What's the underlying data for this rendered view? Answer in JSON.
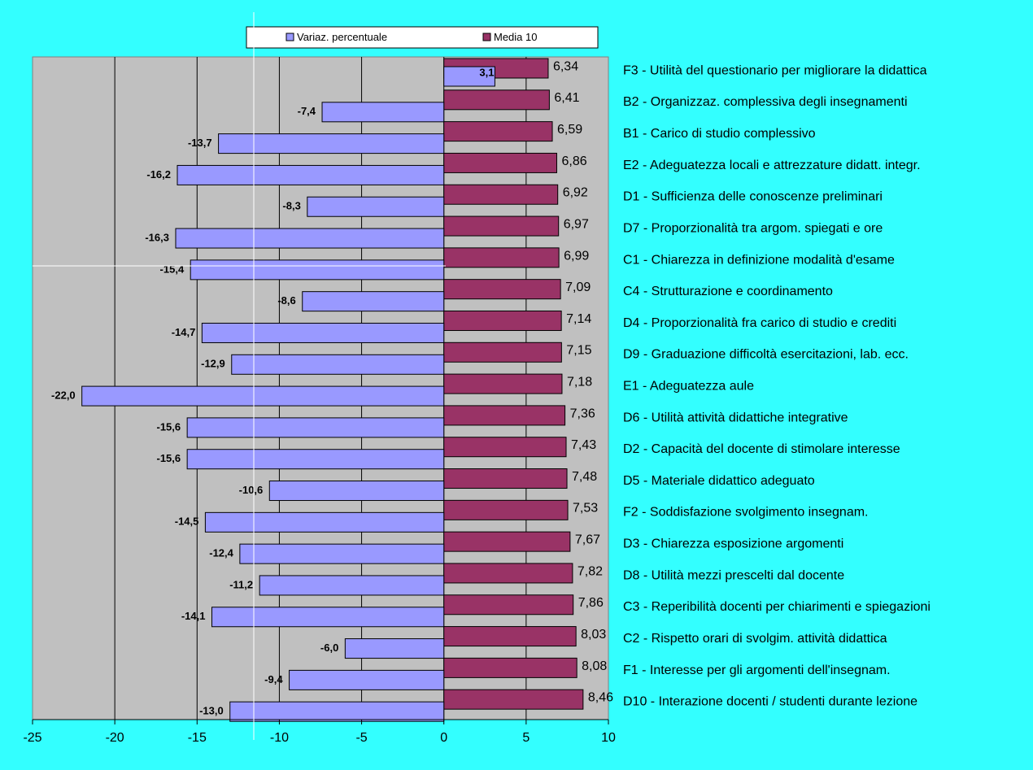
{
  "chart_data": {
    "type": "bar",
    "orientation": "horizontal",
    "categories": [
      "F3 - Utilità del questionario per migliorare la didattica",
      "B2 - Organizzaz. complessiva degli insegnamenti",
      "B1 - Carico di studio complessivo",
      "E2 - Adeguatezza locali e attrezzature didatt. integr.",
      "D1 - Sufficienza delle conoscenze preliminari",
      "D7 - Proporzionalità tra argom. spiegati e ore",
      "C1 - Chiarezza in definizione modalità d'esame",
      "C4 - Strutturazione e coordinamento",
      "D4 - Proporzionalità fra carico di studio e crediti",
      "D9 - Graduazione difficoltà esercitazioni, lab. ecc.",
      "E1 - Adeguatezza aule",
      "D6 - Utilità attività didattiche integrative",
      "D2 - Capacità del docente di stimolare interesse",
      "D5 - Materiale didattico adeguato",
      "F2 - Soddisfazione svolgimento insegnam.",
      "D3 - Chiarezza esposizione argomenti",
      "D8 - Utilità mezzi prescelti dal docente",
      "C3 - Reperibilità docenti per chiarimenti e spiegazioni",
      "C2 - Rispetto orari di svolgim. attività didattica",
      "F1 - Interesse per gli argomenti dell'insegnam.",
      "D10 - Interazione docenti / studenti durante lezione"
    ],
    "series": [
      {
        "name": "Variaz. percentuale",
        "color": "#9999ff",
        "values": [
          3.1,
          -7.4,
          -13.7,
          -16.2,
          -8.3,
          -16.3,
          -15.4,
          -8.6,
          -14.7,
          -12.9,
          -22.0,
          -15.6,
          -15.6,
          -10.6,
          -14.5,
          -12.4,
          -11.2,
          -14.1,
          -6.0,
          -9.4,
          -13.0
        ],
        "labels": [
          "3,1",
          "-7,4",
          "-13,7",
          "-16,2",
          "-8,3",
          "-16,3",
          "-15,4",
          "-8,6",
          "-14,7",
          "-12,9",
          "-22,0",
          "-15,6",
          "-15,6",
          "-10,6",
          "-14,5",
          "-12,4",
          "-11,2",
          "-14,1",
          "-6,0",
          "-9,4",
          "-13,0"
        ]
      },
      {
        "name": "Media 10",
        "color": "#993366",
        "values": [
          6.34,
          6.41,
          6.59,
          6.86,
          6.92,
          6.97,
          6.99,
          7.09,
          7.14,
          7.15,
          7.18,
          7.36,
          7.43,
          7.48,
          7.53,
          7.67,
          7.82,
          7.86,
          8.03,
          8.08,
          8.46
        ],
        "labels": [
          "6,34",
          "6,41",
          "6,59",
          "6,86",
          "6,92",
          "6,97",
          "6,99",
          "7,09",
          "7,14",
          "7,15",
          "7,18",
          "7,36",
          "7,43",
          "7,48",
          "7,53",
          "7,67",
          "7,82",
          "7,86",
          "8,03",
          "8,08",
          "8,46"
        ]
      }
    ],
    "xlim": [
      -25,
      10
    ],
    "xticks": [
      -25,
      -20,
      -15,
      -10,
      -5,
      0,
      5,
      10
    ],
    "xtick_labels": [
      "-25",
      "-20",
      "-15",
      "-10",
      "-5",
      "0",
      "5",
      "10"
    ],
    "grid": "vertical",
    "legend_position": "top",
    "background_color": "#33ffff",
    "plot_background_color": "#c0c0c0"
  }
}
